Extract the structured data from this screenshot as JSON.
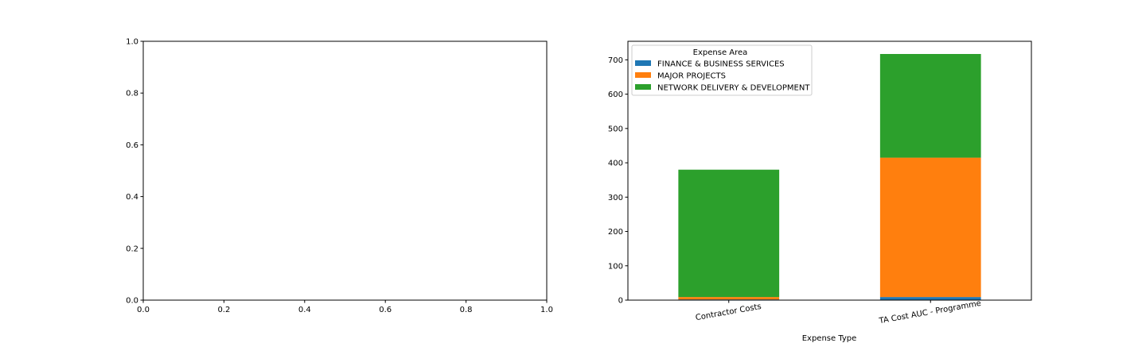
{
  "chart_data": [
    {
      "type": "empty",
      "xlim": [
        0.0,
        1.0
      ],
      "ylim": [
        0.0,
        1.0
      ],
      "xticks": [
        "0.0",
        "0.2",
        "0.4",
        "0.6",
        "0.8",
        "1.0"
      ],
      "yticks": [
        "0.0",
        "0.2",
        "0.4",
        "0.6",
        "0.8",
        "1.0"
      ]
    },
    {
      "type": "bar",
      "stacked": true,
      "categories": [
        "Contractor Costs",
        "TA Cost AUC - Programme"
      ],
      "series": [
        {
          "name": "FINANCE & BUSINESS SERVICES",
          "values": [
            2,
            9
          ],
          "color": "#1f77b4"
        },
        {
          "name": "MAJOR PROJECTS",
          "values": [
            7,
            406
          ],
          "color": "#ff7f0e"
        },
        {
          "name": "NETWORK DELIVERY & DEVELOPMENT",
          "values": [
            371,
            302
          ],
          "color": "#2ca02c"
        }
      ],
      "xlabel": "Expense Type",
      "ylabel": "",
      "ylim": [
        0,
        754
      ],
      "yticks": [
        0,
        100,
        200,
        300,
        400,
        500,
        600,
        700
      ],
      "legend": {
        "title": "Expense Area",
        "placement": "top-left"
      },
      "grid": false
    }
  ]
}
